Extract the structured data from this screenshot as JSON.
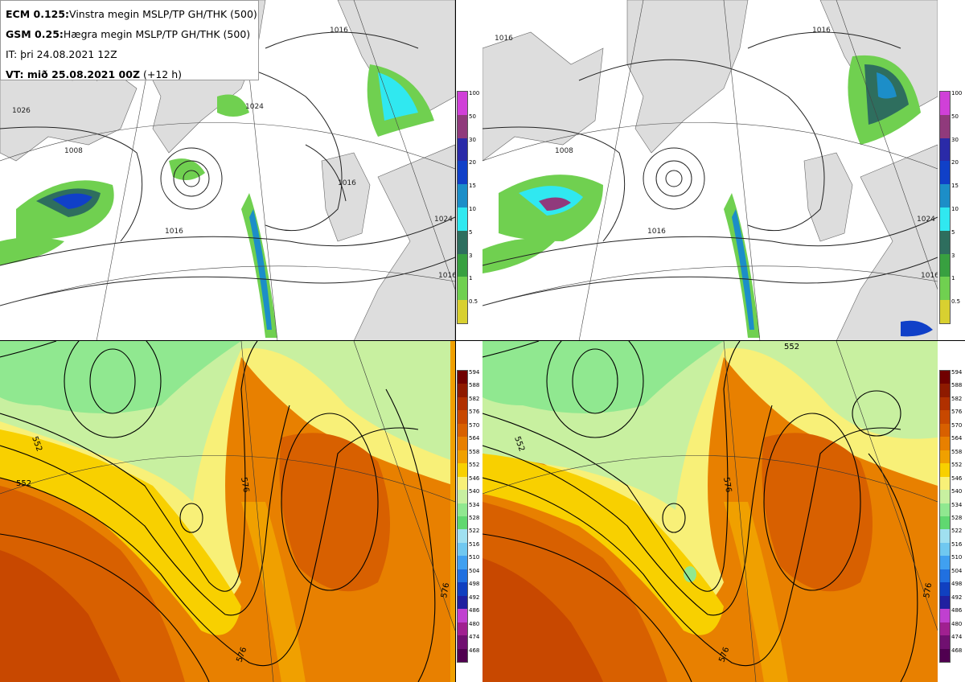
{
  "info": {
    "ecm_bold": "ECM 0.125:",
    "ecm_text": "Vinstra megin MSLP/TP GH/THK (500)",
    "gsm_bold": "GSM 0.25:",
    "gsm_text": "Hægra megin MSLP/TP GH/THK (500)",
    "it_text": "IT: þri 24.08.2021 12Z",
    "vt_bold": "VT: mið 25.08.2021 00Z",
    "vt_text": "(+12 h)"
  },
  "precip_colorbar": {
    "labels": [
      "100",
      "50",
      "30",
      "20",
      "15",
      "10",
      "5",
      "3",
      "1",
      "0.5"
    ],
    "colors": [
      "#d040d8",
      "#903a7c",
      "#2a2aa8",
      "#1040c8",
      "#1c8ec8",
      "#30e8f0",
      "#2e6e5e",
      "#38a040",
      "#70d050",
      "#d8d030"
    ]
  },
  "thickness_colorbar": {
    "labels": [
      "594",
      "588",
      "582",
      "576",
      "570",
      "564",
      "558",
      "552",
      "546",
      "540",
      "534",
      "528",
      "522",
      "516",
      "510",
      "504",
      "498",
      "492",
      "486",
      "480",
      "474",
      "468"
    ],
    "colors": [
      "#700000",
      "#8e1a00",
      "#b03000",
      "#c84800",
      "#d86000",
      "#e88000",
      "#f0a000",
      "#f8d000",
      "#f8f078",
      "#c8f0a0",
      "#90e890",
      "#60d870",
      "#a0e0f0",
      "#70c8f0",
      "#40a0f0",
      "#2070e0",
      "#1040c0",
      "#2020a0",
      "#c040d0",
      "#a02090",
      "#701070",
      "#500050"
    ]
  },
  "isobar_labels": {
    "tl": [
      "1016",
      "1024",
      "1026",
      "1016",
      "1008",
      "1016",
      "1024",
      "1016"
    ],
    "tr": [
      "1016",
      "1008",
      "1016",
      "1016",
      "1024",
      "1016"
    ]
  },
  "thickness_labels": {
    "bl": [
      "552",
      "552",
      "576",
      "576",
      "576"
    ],
    "br": [
      "552",
      "552",
      "576",
      "576",
      "576"
    ]
  }
}
